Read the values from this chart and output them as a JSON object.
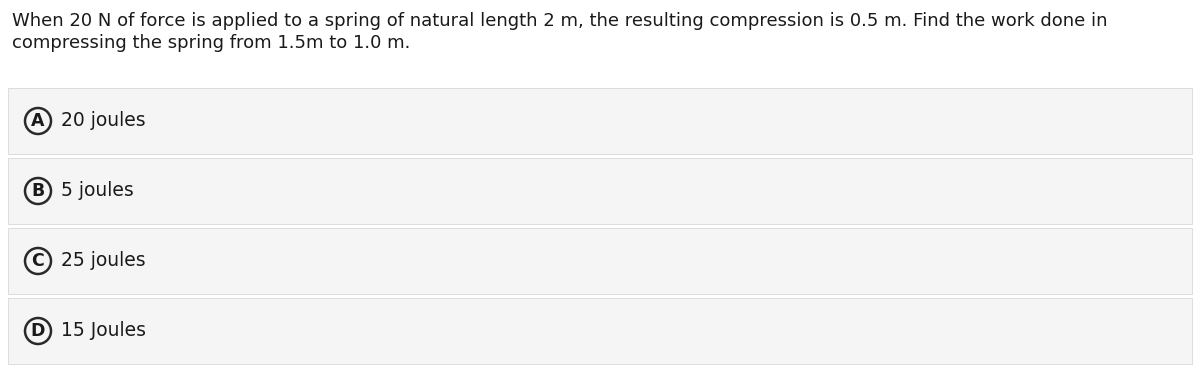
{
  "question_text_line1": "When 20 N of force is applied to a spring of natural length 2 m, the resulting compression is 0.5 m. Find the work done in",
  "question_text_line2": "compressing the spring from 1.5m to 1.0 m.",
  "options": [
    {
      "label": "A",
      "text": "20 joules"
    },
    {
      "label": "B",
      "text": "5 joules"
    },
    {
      "label": "C",
      "text": "25 joules"
    },
    {
      "label": "D",
      "text": "15 Joules"
    }
  ],
  "page_bg": "#ffffff",
  "option_bg": "#f5f5f5",
  "option_border_color": "#d8d8d8",
  "text_color": "#1a1a1a",
  "circle_edge_color": "#2a2a2a",
  "circle_face_color": "#f5f5f5",
  "question_fontsize": 13.0,
  "option_fontsize": 13.5,
  "label_fontsize": 12.5,
  "fig_width": 12.0,
  "fig_height": 3.73,
  "dpi": 100
}
